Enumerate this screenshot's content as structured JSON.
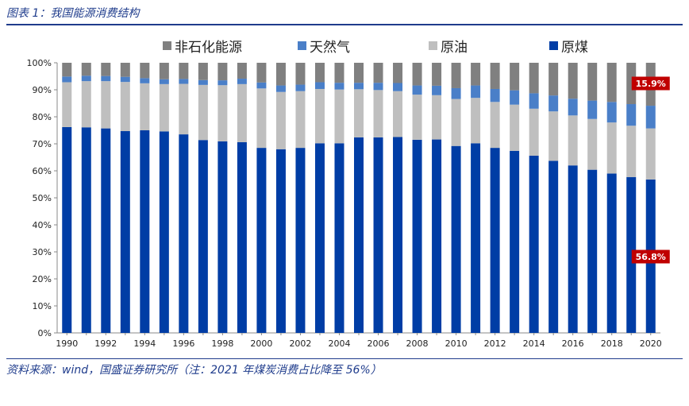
{
  "header": {
    "title": "图表 1：我国能源消费结构"
  },
  "footer": {
    "source": "资料来源：wind，国盛证券研究所（注：2021 年煤炭消费占比降至 56%）"
  },
  "chart_data": {
    "type": "bar",
    "stacked": true,
    "title": "",
    "xlabel": "",
    "ylabel": "",
    "ylim": [
      0,
      100
    ],
    "y_ticks": [
      "0%",
      "10%",
      "20%",
      "30%",
      "40%",
      "50%",
      "60%",
      "70%",
      "80%",
      "90%",
      "100%"
    ],
    "grid": false,
    "legend_position": "top",
    "categories": [
      "1990",
      "1991",
      "1992",
      "1993",
      "1994",
      "1995",
      "1996",
      "1997",
      "1998",
      "1999",
      "2000",
      "2001",
      "2002",
      "2003",
      "2004",
      "2005",
      "2006",
      "2007",
      "2008",
      "2009",
      "2010",
      "2011",
      "2012",
      "2013",
      "2014",
      "2015",
      "2016",
      "2017",
      "2018",
      "2019",
      "2020"
    ],
    "x_tick_labels": [
      "1990",
      "",
      "1992",
      "",
      "1994",
      "",
      "1996",
      "",
      "1998",
      "",
      "2000",
      "",
      "2002",
      "",
      "2004",
      "",
      "2006",
      "",
      "2008",
      "",
      "2010",
      "",
      "2012",
      "",
      "2014",
      "",
      "2016",
      "",
      "2018",
      "",
      "2020"
    ],
    "series": [
      {
        "name": "原煤",
        "color": "#003da5",
        "values": [
          76.2,
          76.1,
          75.7,
          74.7,
          75.0,
          74.6,
          73.5,
          71.4,
          70.9,
          70.6,
          68.5,
          68.0,
          68.5,
          70.2,
          70.2,
          72.4,
          72.4,
          72.5,
          71.5,
          71.6,
          69.2,
          70.2,
          68.5,
          67.4,
          65.6,
          63.7,
          62.0,
          60.4,
          59.0,
          57.7,
          56.8
        ]
      },
      {
        "name": "原油",
        "color": "#bfbfbf",
        "values": [
          16.6,
          17.1,
          17.5,
          18.2,
          17.4,
          17.5,
          18.7,
          20.4,
          20.8,
          21.5,
          22.0,
          21.2,
          21.0,
          20.1,
          19.9,
          17.8,
          17.5,
          17.0,
          16.7,
          16.4,
          17.4,
          16.8,
          17.0,
          17.1,
          17.4,
          18.3,
          18.5,
          18.8,
          18.9,
          19.0,
          18.9
        ]
      },
      {
        "name": "天然气",
        "color": "#4a7fc8",
        "values": [
          2.1,
          2.0,
          1.9,
          1.9,
          1.9,
          1.8,
          1.8,
          1.8,
          1.8,
          2.0,
          2.2,
          2.4,
          2.4,
          2.5,
          2.5,
          2.4,
          2.7,
          3.0,
          3.4,
          3.5,
          4.0,
          4.6,
          4.8,
          5.3,
          5.7,
          5.9,
          6.2,
          6.8,
          7.6,
          8.0,
          8.4
        ]
      },
      {
        "name": "非石化能源",
        "color": "#808080",
        "values": [
          5.1,
          4.8,
          4.9,
          5.2,
          5.7,
          6.1,
          6.0,
          6.4,
          6.5,
          5.9,
          7.3,
          8.4,
          8.1,
          7.2,
          7.4,
          7.4,
          7.4,
          7.5,
          8.4,
          8.5,
          9.4,
          8.4,
          9.7,
          10.2,
          11.3,
          12.1,
          13.3,
          14.0,
          14.5,
          15.3,
          15.9
        ]
      }
    ],
    "annotations": [
      {
        "text": "15.9%",
        "series": "非石化能源",
        "category": "2020"
      },
      {
        "text": "56.8%",
        "series": "原煤",
        "category": "2020"
      }
    ]
  }
}
